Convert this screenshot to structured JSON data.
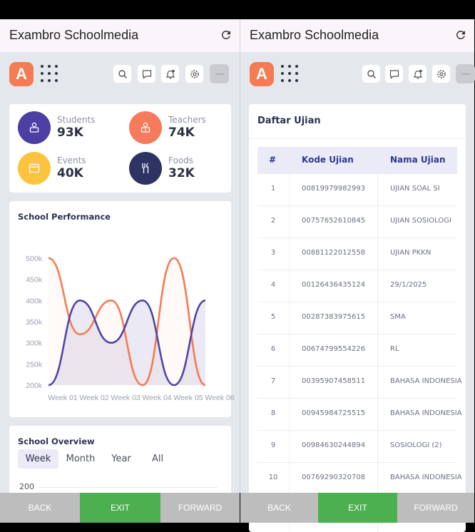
{
  "app_title": "Exambro Schoolmedia",
  "logo_letter": "A",
  "stats": [
    {
      "label": "Students",
      "value": "93K",
      "color": "#4c3fa3",
      "icon": "student-icon"
    },
    {
      "label": "Teachers",
      "value": "74K",
      "color": "#f47b5b",
      "icon": "teacher-icon"
    },
    {
      "label": "Events",
      "value": "40K",
      "color": "#fcc43e",
      "icon": "calendar-icon"
    },
    {
      "label": "Foods",
      "value": "32K",
      "color": "#2d3464",
      "icon": "fork-knife-icon"
    }
  ],
  "performance": {
    "title": "School Performance"
  },
  "chart_data": {
    "type": "area",
    "title": "School Performance",
    "categories": [
      "Week 01",
      "Week 02",
      "Week 03",
      "Week 04",
      "Week 05",
      "Week 06"
    ],
    "yticks": [
      "500k",
      "450k",
      "400k",
      "350k",
      "300k",
      "250k",
      "200k"
    ],
    "ylim": [
      200,
      500
    ],
    "series": [
      {
        "color": "#f47b53",
        "fill": false,
        "values": [
          500,
          320,
          400,
          200,
          500,
          200
        ]
      },
      {
        "color": "#5046a7",
        "fill": true,
        "values": [
          200,
          400,
          300,
          400,
          200,
          400
        ]
      }
    ],
    "grid": false
  },
  "overview": {
    "title": "School Overview",
    "tabs": [
      "Week",
      "Month",
      "Year",
      "All"
    ],
    "active_tab": "Week",
    "first_tick": "200"
  },
  "exam_table": {
    "title": "Daftar Ujian",
    "headers": [
      "#",
      "Kode Ujian",
      "Nama Ujian"
    ],
    "rows": [
      [
        "1",
        "00819979982993",
        "UJIAN SOAL SI"
      ],
      [
        "2",
        "00757652610845",
        "UJIAN SOSIOLOGI"
      ],
      [
        "3",
        "00881122012558",
        "UJIAN PKKN"
      ],
      [
        "4",
        "00126436435124",
        "29/1/2025"
      ],
      [
        "5",
        "00287383975615",
        "SMA"
      ],
      [
        "6",
        "00674799554226",
        "RL"
      ],
      [
        "7",
        "00395907458511",
        "BAHASA INDONESIA"
      ],
      [
        "8",
        "00945984725515",
        "BAHASA INDONESIA"
      ],
      [
        "9",
        "00984630244894",
        "SOSIOLOGI (2)"
      ],
      [
        "10",
        "00769290320708",
        "BAHASA INDONESIA"
      ]
    ]
  },
  "bottom_buttons": [
    {
      "label": "BACK",
      "color": "#bdbdbd"
    },
    {
      "label": "EXIT",
      "color": "#4caf50"
    },
    {
      "label": "FORWARD",
      "color": "#bdbdbd"
    }
  ]
}
